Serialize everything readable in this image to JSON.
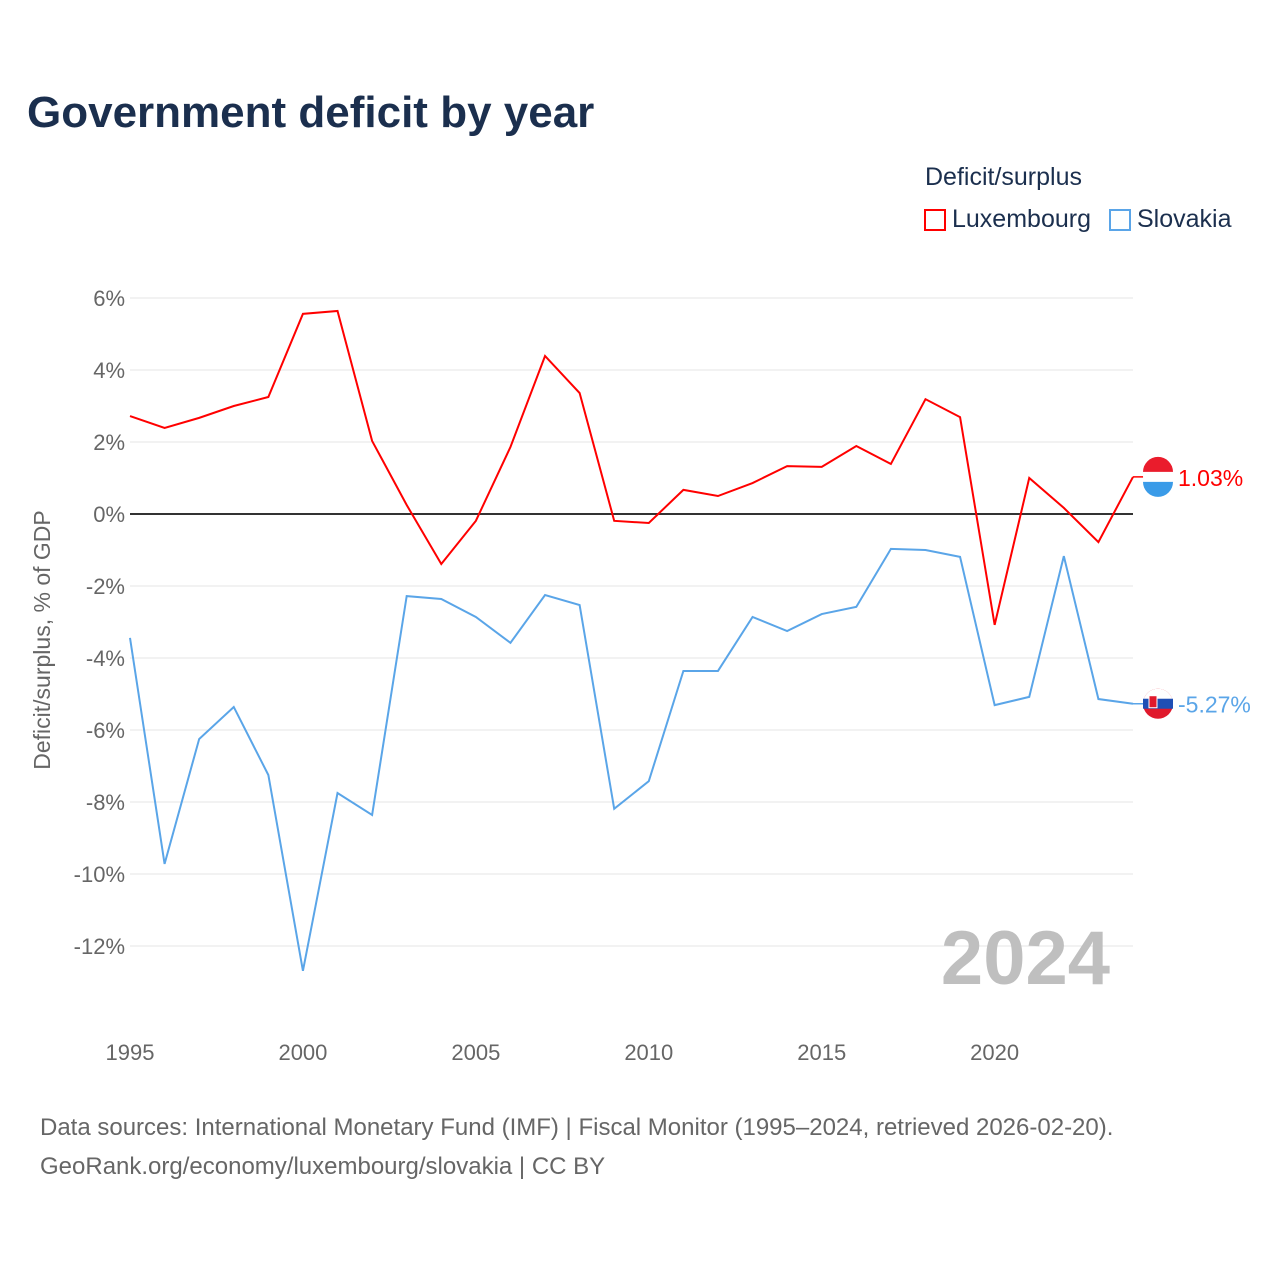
{
  "title": "Government deficit by year",
  "legend": {
    "title": "Deficit/surplus",
    "items": [
      {
        "label": "Luxembourg",
        "color": "#ff0000"
      },
      {
        "label": "Slovakia",
        "color": "#5aa5e8"
      }
    ]
  },
  "source": {
    "line1": "Data sources: International Monetary Fund (IMF) | Fiscal Monitor (1995–2024, retrieved 2026-02-20).",
    "line2": "GeoRank.org/economy/luxembourg/slovakia | CC BY"
  },
  "chart_data": {
    "type": "line",
    "title": "Government deficit by year",
    "xlabel": "",
    "ylabel": "Deficit/surplus, % of GDP",
    "year_watermark": "2024",
    "xlim": [
      1995,
      2024
    ],
    "ylim": [
      -14,
      6
    ],
    "x_ticks": [
      1995,
      2000,
      2005,
      2010,
      2015,
      2020
    ],
    "y_ticks": [
      6,
      4,
      2,
      0,
      -2,
      -4,
      -6,
      -8,
      -10,
      -12
    ],
    "y_tick_labels": [
      "6%",
      "4%",
      "2%",
      "0%",
      "-2%",
      "-4%",
      "-6%",
      "-8%",
      "-10%",
      "-12%"
    ],
    "x": [
      1995,
      1996,
      1997,
      1998,
      1999,
      2000,
      2001,
      2002,
      2003,
      2004,
      2005,
      2006,
      2007,
      2008,
      2009,
      2010,
      2011,
      2012,
      2013,
      2014,
      2015,
      2016,
      2017,
      2018,
      2019,
      2020,
      2021,
      2022,
      2023,
      2024
    ],
    "series": [
      {
        "name": "Luxembourg",
        "color": "#ff0000",
        "end_label": "1.03%",
        "values": [
          2.72,
          2.39,
          2.67,
          3.0,
          3.25,
          5.56,
          5.64,
          2.03,
          0.25,
          -1.39,
          -0.19,
          1.86,
          4.39,
          3.36,
          -0.19,
          -0.25,
          0.67,
          0.5,
          0.86,
          1.33,
          1.31,
          1.89,
          1.39,
          3.19,
          2.69,
          -3.08,
          1.0,
          0.17,
          -0.78,
          1.03
        ]
      },
      {
        "name": "Slovakia",
        "color": "#5aa5e8",
        "end_label": "-5.27%",
        "values": [
          -3.44,
          -9.72,
          -6.25,
          -5.36,
          -7.25,
          -12.69,
          -7.75,
          -8.36,
          -2.28,
          -2.36,
          -2.86,
          -3.58,
          -2.25,
          -2.53,
          -8.19,
          -7.42,
          -4.36,
          -4.36,
          -2.86,
          -3.25,
          -2.78,
          -2.58,
          -0.97,
          -1.0,
          -1.19,
          -5.31,
          -5.08,
          -1.17,
          -5.14,
          -5.27
        ]
      }
    ]
  }
}
